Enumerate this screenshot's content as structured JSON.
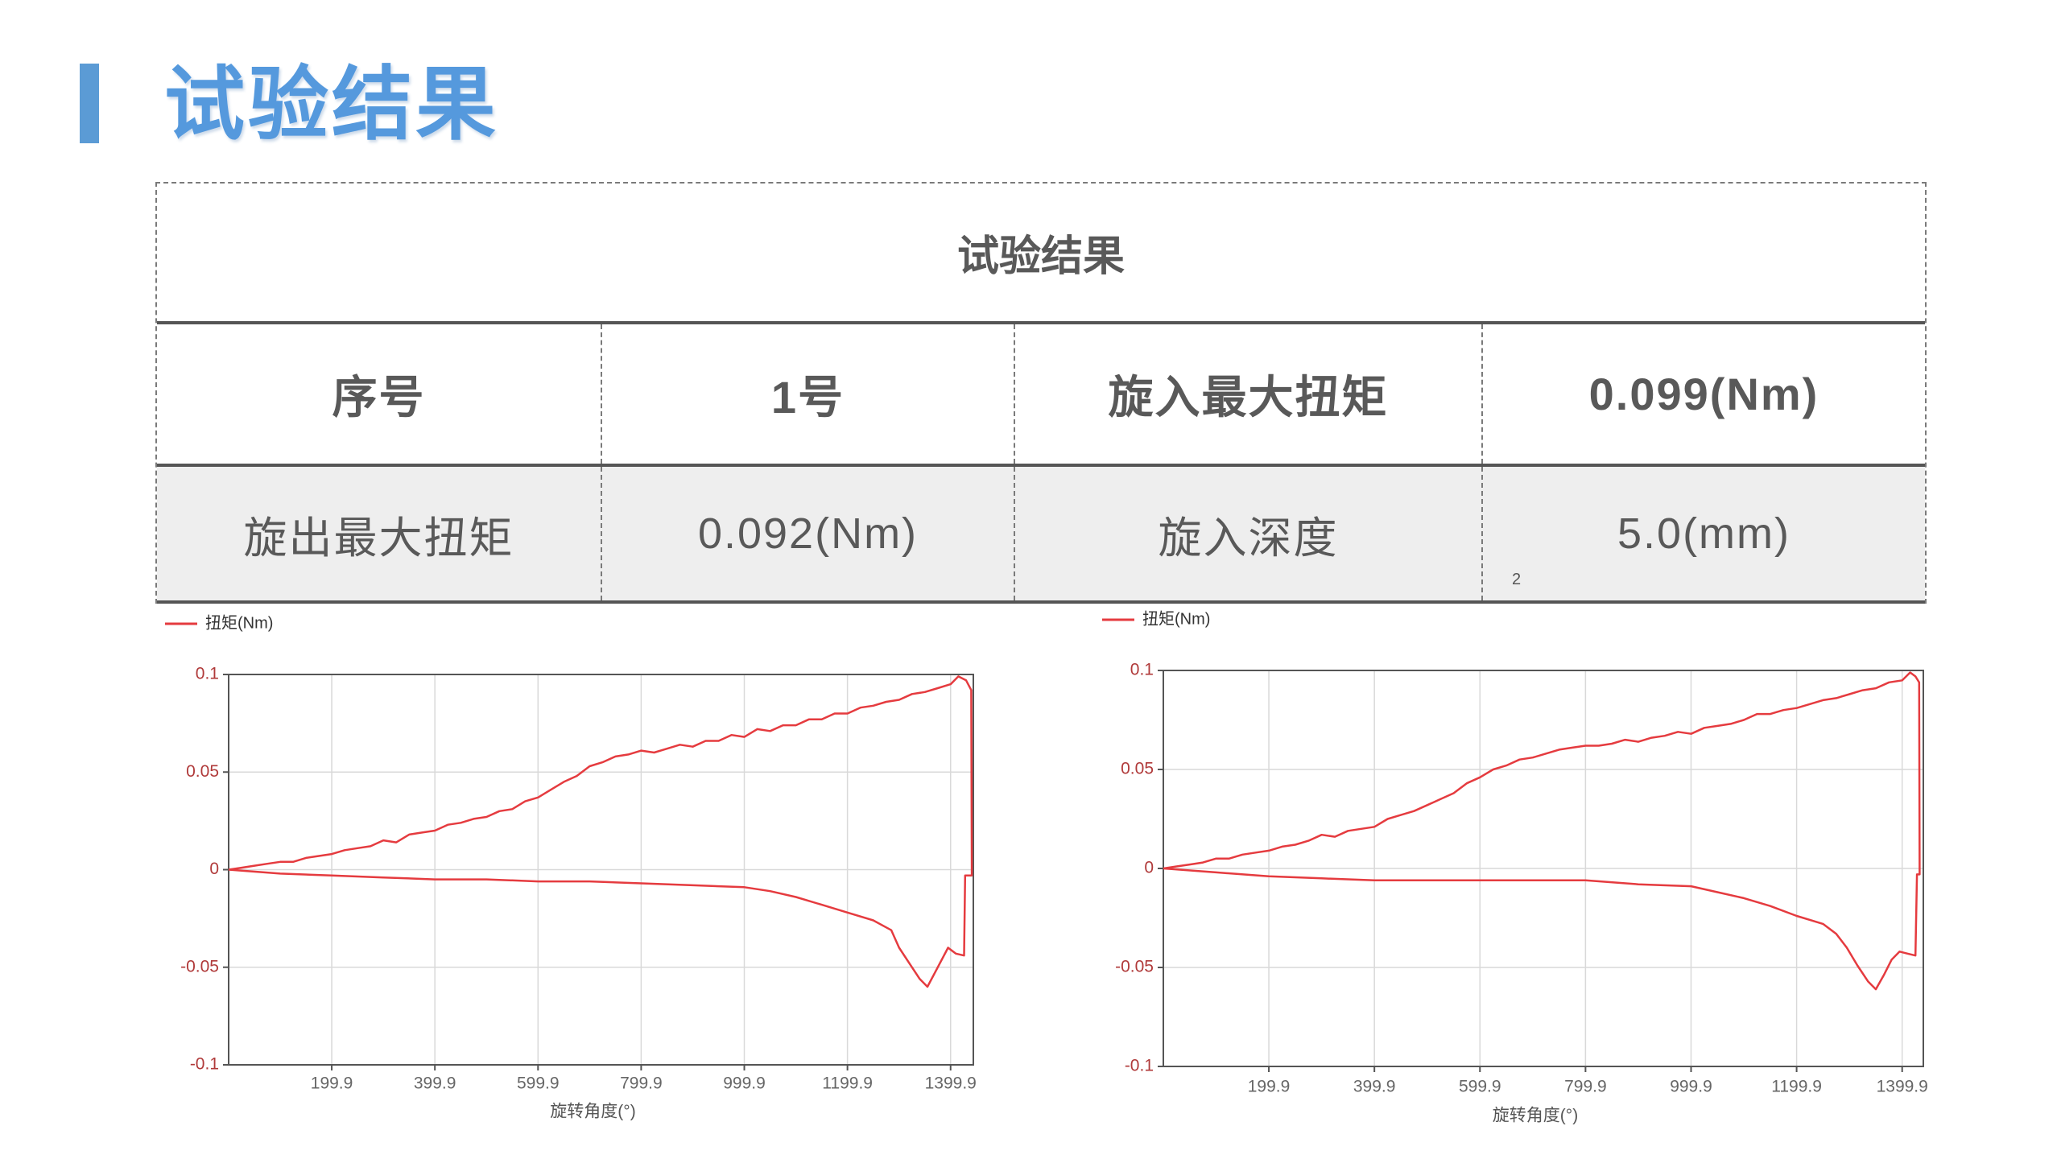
{
  "page": {
    "title": "试验结果"
  },
  "colors": {
    "accent": "#5b9bd5",
    "title": "#5599dd",
    "table_text": "#595959",
    "table_alt_row": "#eeeeee",
    "series": "#e53b3f",
    "y_tick_text": "#b03a3a",
    "x_tick_text": "#666666",
    "grid": "#d9d9d9",
    "frame": "#555555"
  },
  "table": {
    "caption": "试验结果",
    "rows": [
      [
        "序号",
        "1号",
        "旋入最大扭矩",
        "0.099(Nm)"
      ],
      [
        "旋出最大扭矩",
        "0.092(Nm)",
        "旋入深度",
        "5.0(mm)"
      ]
    ],
    "note": "2"
  },
  "chart_data": [
    {
      "type": "line",
      "xlabel": "旋转角度(°)",
      "xlim": [
        0,
        1444
      ],
      "ylim": [
        -0.1,
        0.1
      ],
      "xticks": [
        199.9,
        399.9,
        599.9,
        799.9,
        999.9,
        1199.9,
        1399.9
      ],
      "yticks": [
        0.1,
        0.05,
        0,
        -0.05,
        -0.1
      ],
      "grid": true,
      "legend": "top-left",
      "series": [
        {
          "name": "扭矩(Nm)",
          "x": [
            0,
            25,
            50,
            75,
            100,
            125,
            150,
            175,
            200,
            225,
            250,
            275,
            300,
            325,
            350,
            375,
            400,
            425,
            450,
            475,
            500,
            525,
            550,
            575,
            600,
            625,
            650,
            675,
            700,
            725,
            750,
            775,
            800,
            825,
            850,
            875,
            900,
            925,
            950,
            975,
            1000,
            1025,
            1050,
            1075,
            1100,
            1125,
            1150,
            1175,
            1200,
            1225,
            1250,
            1275,
            1300,
            1325,
            1350,
            1375,
            1400,
            1415,
            1430,
            1440,
            1441,
            1428,
            1426,
            1410,
            1395,
            1375,
            1355,
            1340,
            1320,
            1300,
            1285,
            1250,
            1200,
            1150,
            1100,
            1050,
            1000,
            900,
            800,
            700,
            600,
            500,
            400,
            300,
            200,
            100,
            0
          ],
          "y": [
            0.0,
            0.001,
            0.002,
            0.003,
            0.004,
            0.004,
            0.006,
            0.007,
            0.008,
            0.01,
            0.011,
            0.012,
            0.015,
            0.014,
            0.018,
            0.019,
            0.02,
            0.023,
            0.024,
            0.026,
            0.027,
            0.03,
            0.031,
            0.035,
            0.037,
            0.041,
            0.045,
            0.048,
            0.053,
            0.055,
            0.058,
            0.059,
            0.061,
            0.06,
            0.062,
            0.064,
            0.063,
            0.066,
            0.066,
            0.069,
            0.068,
            0.072,
            0.071,
            0.074,
            0.074,
            0.077,
            0.077,
            0.08,
            0.08,
            0.083,
            0.084,
            0.086,
            0.087,
            0.09,
            0.091,
            0.093,
            0.095,
            0.099,
            0.097,
            0.092,
            -0.003,
            -0.003,
            -0.044,
            -0.043,
            -0.04,
            -0.05,
            -0.06,
            -0.056,
            -0.048,
            -0.04,
            -0.031,
            -0.026,
            -0.022,
            -0.018,
            -0.014,
            -0.011,
            -0.009,
            -0.008,
            -0.007,
            -0.006,
            -0.006,
            -0.005,
            -0.005,
            -0.004,
            -0.003,
            -0.002,
            0.0
          ]
        }
      ]
    },
    {
      "type": "line",
      "xlabel": "旋转角度(°)",
      "xlim": [
        0,
        1440
      ],
      "ylim": [
        -0.1,
        0.1
      ],
      "xticks": [
        199.9,
        399.9,
        599.9,
        799.9,
        999.9,
        1199.9,
        1399.9
      ],
      "yticks": [
        0.1,
        0.05,
        0,
        -0.05,
        -0.1
      ],
      "grid": true,
      "legend": "top-left",
      "series": [
        {
          "name": "扭矩(Nm)",
          "x": [
            0,
            25,
            50,
            75,
            100,
            125,
            150,
            175,
            200,
            225,
            250,
            275,
            300,
            325,
            350,
            375,
            400,
            425,
            450,
            475,
            500,
            525,
            550,
            575,
            600,
            625,
            650,
            675,
            700,
            725,
            750,
            775,
            800,
            825,
            850,
            875,
            900,
            925,
            950,
            975,
            1000,
            1025,
            1050,
            1075,
            1100,
            1125,
            1150,
            1175,
            1200,
            1225,
            1250,
            1275,
            1300,
            1325,
            1350,
            1375,
            1400,
            1415,
            1425,
            1432,
            1433,
            1428,
            1425,
            1410,
            1395,
            1380,
            1365,
            1350,
            1335,
            1315,
            1295,
            1275,
            1250,
            1200,
            1150,
            1100,
            1050,
            1000,
            900,
            800,
            700,
            600,
            500,
            400,
            300,
            200,
            100,
            0
          ],
          "y": [
            0.0,
            0.001,
            0.002,
            0.003,
            0.005,
            0.005,
            0.007,
            0.008,
            0.009,
            0.011,
            0.012,
            0.014,
            0.017,
            0.016,
            0.019,
            0.02,
            0.021,
            0.025,
            0.027,
            0.029,
            0.032,
            0.035,
            0.038,
            0.043,
            0.046,
            0.05,
            0.052,
            0.055,
            0.056,
            0.058,
            0.06,
            0.061,
            0.062,
            0.062,
            0.063,
            0.065,
            0.064,
            0.066,
            0.067,
            0.069,
            0.068,
            0.071,
            0.072,
            0.073,
            0.075,
            0.078,
            0.078,
            0.08,
            0.081,
            0.083,
            0.085,
            0.086,
            0.088,
            0.09,
            0.091,
            0.094,
            0.095,
            0.099,
            0.097,
            0.094,
            -0.003,
            -0.003,
            -0.044,
            -0.043,
            -0.042,
            -0.046,
            -0.054,
            -0.061,
            -0.057,
            -0.049,
            -0.04,
            -0.033,
            -0.028,
            -0.024,
            -0.019,
            -0.015,
            -0.012,
            -0.009,
            -0.008,
            -0.006,
            -0.006,
            -0.006,
            -0.006,
            -0.006,
            -0.005,
            -0.004,
            -0.002,
            0.0
          ]
        }
      ]
    }
  ]
}
